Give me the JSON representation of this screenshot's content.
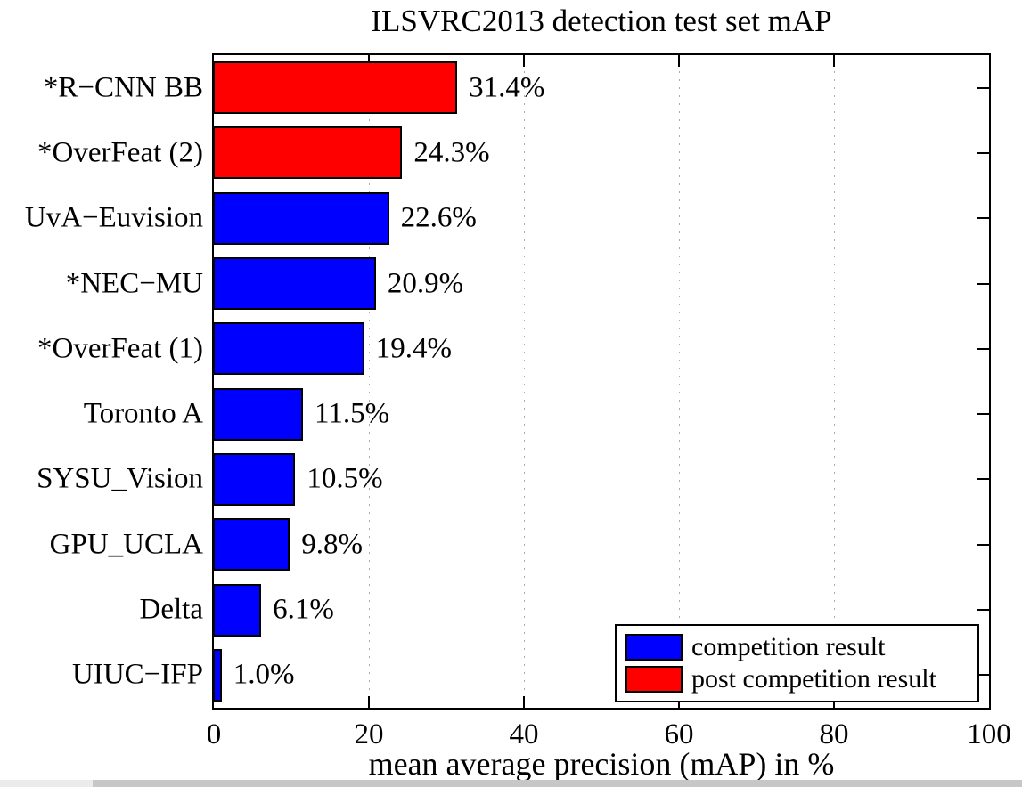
{
  "chart_data": {
    "type": "bar",
    "orientation": "horizontal",
    "title": "ILSVRC2013 detection test set mAP",
    "xlabel": "mean average precision (mAP) in %",
    "xlim": [
      0,
      100
    ],
    "xticks": [
      0,
      20,
      40,
      60,
      80,
      100
    ],
    "grid": "vertical-dotted-at-xticks",
    "legend_position": "bottom-right",
    "categories": [
      "*R−CNN BB",
      "*OverFeat (2)",
      "UvA−Euvision",
      "*NEC−MU",
      "*OverFeat (1)",
      "Toronto A",
      "SYSU_Vision",
      "GPU_UCLA",
      "Delta",
      "UIUC−IFP"
    ],
    "values": [
      31.4,
      24.3,
      22.6,
      20.9,
      19.4,
      11.5,
      10.5,
      9.8,
      6.1,
      1.0
    ],
    "value_labels": [
      "31.4%",
      "24.3%",
      "22.6%",
      "20.9%",
      "19.4%",
      "11.5%",
      "10.5%",
      "9.8%",
      "6.1%",
      "1.0%"
    ],
    "bar_types": [
      "post",
      "post",
      "competition",
      "competition",
      "competition",
      "competition",
      "competition",
      "competition",
      "competition",
      "competition"
    ]
  },
  "legend": {
    "items": [
      {
        "label": "competition result",
        "type": "competition"
      },
      {
        "label": "post competition result",
        "type": "post"
      }
    ]
  },
  "colors": {
    "competition": "#0000ff",
    "post": "#ff0000",
    "axis": "#000000",
    "grid": "#ababab",
    "background": "#ffffff",
    "scrollbar_track": "#c7c7c7",
    "scrollbar_thumb": "#ebebeb"
  }
}
